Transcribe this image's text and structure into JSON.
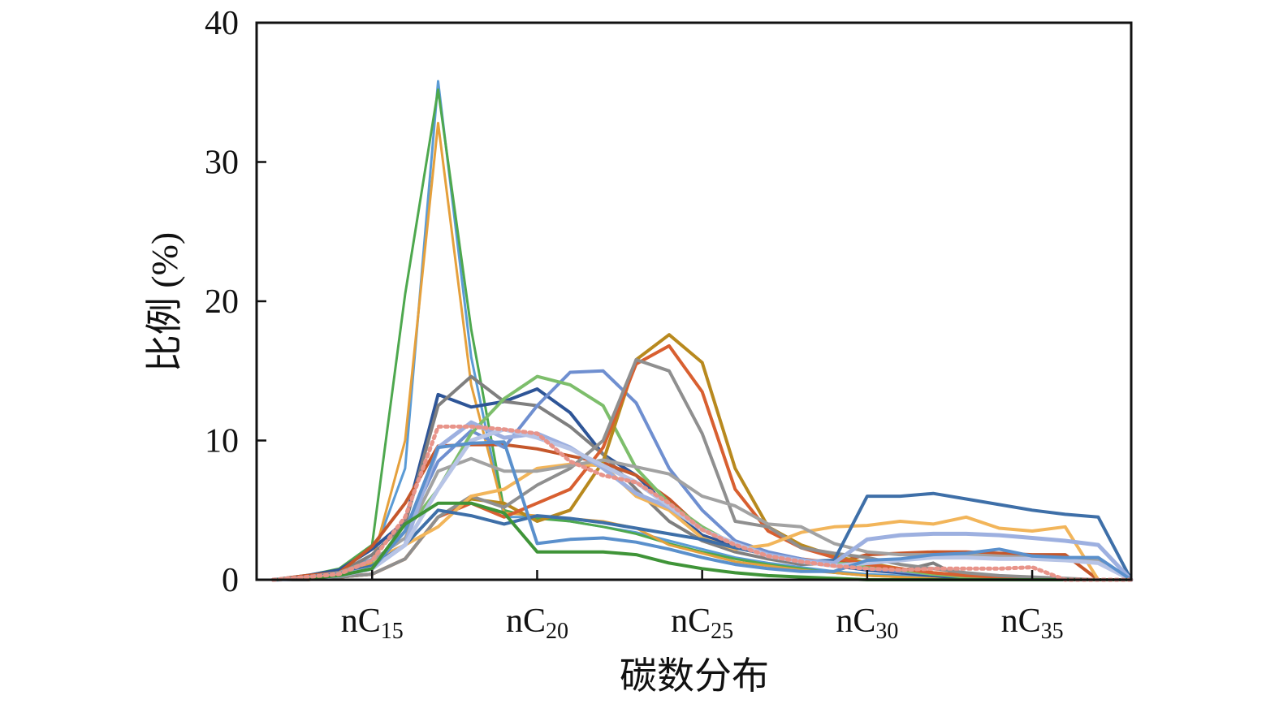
{
  "chart_data": {
    "type": "line",
    "title": "",
    "xlabel": "碳数分布",
    "ylabel": "比例 (%)",
    "xlim": [
      11.5,
      38
    ],
    "ylim": [
      0,
      40
    ],
    "yticks": [
      0,
      10,
      20,
      30,
      40
    ],
    "xticks": [
      {
        "value": 15,
        "prefix": "nC",
        "sub": "15"
      },
      {
        "value": 20,
        "prefix": "nC",
        "sub": "20"
      },
      {
        "value": 25,
        "prefix": "nC",
        "sub": "25"
      },
      {
        "value": 30,
        "prefix": "nC",
        "sub": "30"
      },
      {
        "value": 35,
        "prefix": "nC",
        "sub": "35"
      }
    ],
    "grid": false,
    "legend": "none",
    "x": [
      12,
      13,
      14,
      15,
      16,
      17,
      18,
      19,
      20,
      21,
      22,
      23,
      24,
      25,
      26,
      27,
      28,
      29,
      30,
      31,
      32,
      33,
      34,
      35,
      36,
      37,
      38
    ],
    "series": [
      {
        "color": "#5B9BD5",
        "width": 3,
        "values": [
          0,
          0.3,
          0.6,
          1.5,
          8,
          35.8,
          16,
          4.5,
          4.5,
          4.2,
          3.8,
          3.4,
          2.8,
          2.2,
          1.6,
          1.2,
          0.9,
          0.6,
          0.4,
          0.3,
          0.2,
          0.1,
          0,
          0,
          0,
          0,
          0
        ]
      },
      {
        "color": "#4EA84E",
        "width": 3,
        "values": [
          0,
          0.3,
          0.8,
          2.5,
          20.5,
          35.2,
          18,
          5,
          4.4,
          4.2,
          3.8,
          3.3,
          2.6,
          2,
          1.5,
          1.1,
          0.8,
          0.5,
          0.3,
          0.2,
          0.1,
          0,
          0,
          0,
          0,
          0,
          0
        ]
      },
      {
        "color": "#E5A03C",
        "width": 3,
        "values": [
          0,
          0.2,
          0.5,
          1.2,
          10,
          32.8,
          14,
          4.8,
          4.6,
          4.4,
          4.2,
          3.7,
          2.5,
          1.9,
          1.3,
          1,
          0.7,
          0.5,
          0.3,
          0.2,
          0.1,
          0,
          0,
          0,
          0,
          0,
          0
        ]
      },
      {
        "color": "#2E5597",
        "width": 4,
        "values": [
          0,
          0.3,
          0.7,
          2.2,
          4.2,
          13.3,
          12.4,
          12.8,
          13.7,
          12,
          9,
          7.5,
          5.2,
          3.2,
          2.4,
          1.8,
          1.3,
          1,
          0.7,
          0.5,
          0.3,
          0.1,
          0,
          0,
          0,
          0,
          0
        ]
      },
      {
        "color": "#7F7F7F",
        "width": 4,
        "values": [
          0,
          0.2,
          0.5,
          1.8,
          4,
          12.5,
          14.6,
          12.8,
          12.5,
          11,
          9,
          6.5,
          4.2,
          2.8,
          2,
          1.5,
          1.1,
          1.2,
          1.2,
          0.6,
          1.2,
          0,
          0,
          0,
          0,
          0,
          0
        ]
      },
      {
        "color": "#C5572B",
        "width": 4,
        "values": [
          0,
          0.3,
          0.5,
          2.4,
          5.5,
          9.6,
          9.7,
          9.7,
          9.4,
          8.9,
          8.4,
          7.5,
          5.8,
          3.6,
          2.5,
          1.9,
          1.5,
          1.2,
          1.8,
          1.9,
          2,
          2,
          1.9,
          1.8,
          1.8,
          0,
          0
        ]
      },
      {
        "color": "#6F8FD0",
        "width": 4,
        "values": [
          0,
          0.1,
          0.3,
          0.8,
          3.5,
          8.5,
          10.7,
          9.5,
          12.5,
          14.9,
          15,
          12.7,
          8,
          5,
          2.8,
          2,
          1.5,
          1,
          0.8,
          0.6,
          0.4,
          0.3,
          0.2,
          0.1,
          0,
          0,
          0
        ]
      },
      {
        "color": "#7DBE6B",
        "width": 4,
        "values": [
          0,
          0.1,
          0.3,
          1,
          3.5,
          6.5,
          10.5,
          13,
          14.6,
          14,
          12.5,
          8,
          5.5,
          3.8,
          2.5,
          1.8,
          1.4,
          1.2,
          1,
          0.7,
          0.4,
          0.2,
          0.1,
          0,
          0,
          0,
          0
        ]
      },
      {
        "color": "#B8891E",
        "width": 4,
        "values": [
          0,
          0,
          0.2,
          0.4,
          1.5,
          4.5,
          5.8,
          5.5,
          4.2,
          5,
          8.5,
          15.8,
          17.6,
          15.6,
          8,
          3.8,
          2.5,
          1.7,
          1.2,
          0.8,
          0.5,
          0.3,
          0.2,
          0.1,
          0,
          0,
          0
        ]
      },
      {
        "color": "#D85F30",
        "width": 4,
        "values": [
          0,
          0,
          0.2,
          0.4,
          1.5,
          4.5,
          5.5,
          4.5,
          5.5,
          6.5,
          9.5,
          15.5,
          16.8,
          13.5,
          6.5,
          3.5,
          2.3,
          1.6,
          1.1,
          0.8,
          0.5,
          0.3,
          0.2,
          0.1,
          0,
          0,
          0
        ]
      },
      {
        "color": "#8F8F8F",
        "width": 4,
        "values": [
          0,
          0,
          0.2,
          0.4,
          1.5,
          4.5,
          6,
          5.2,
          6.8,
          8,
          10,
          15.8,
          15,
          10.5,
          4.2,
          3.8,
          2.3,
          1.9,
          1.6,
          1.1,
          0.8,
          0.5,
          0.3,
          0.2,
          0.1,
          0,
          0
        ]
      },
      {
        "color": "#F2B55A",
        "width": 4,
        "values": [
          0,
          0.2,
          0.5,
          1.4,
          2.5,
          3.8,
          6,
          6.5,
          8,
          8.3,
          8.2,
          6,
          5,
          3,
          2.2,
          2.5,
          3.4,
          3.8,
          3.9,
          4.2,
          4,
          4.5,
          3.7,
          3.5,
          3.8,
          0,
          0
        ]
      },
      {
        "color": "#A2A2A2",
        "width": 4,
        "values": [
          0,
          0.2,
          0.5,
          1.4,
          3,
          7.8,
          8.7,
          7.8,
          7.8,
          8.2,
          8.6,
          8.1,
          7.6,
          6,
          5.3,
          4,
          3.8,
          2.6,
          2,
          1.8,
          1.8,
          1.8,
          1.7,
          1.6,
          1.6,
          1.4,
          0
        ]
      },
      {
        "color": "#3E6FA8",
        "width": 4,
        "values": [
          0,
          0.2,
          0.4,
          1,
          2.5,
          5,
          4.6,
          4,
          4.6,
          4.4,
          4.1,
          3.7,
          3.3,
          2.9,
          2.3,
          1.8,
          1.3,
          1.4,
          6,
          6,
          6.2,
          5.8,
          5.4,
          5,
          4.7,
          4.5,
          0
        ]
      },
      {
        "color": "#9DB0E0",
        "width": 5,
        "values": [
          0,
          0.1,
          0.3,
          0.8,
          2.5,
          9.5,
          11.3,
          10.2,
          10.5,
          9.5,
          8,
          6.2,
          5.2,
          3.6,
          2.6,
          1.8,
          1.4,
          1.2,
          2.9,
          3.2,
          3.3,
          3.3,
          3.2,
          3,
          2.8,
          2.5,
          0
        ]
      },
      {
        "color": "#B7C4E6",
        "width": 5,
        "values": [
          0,
          0.1,
          0.3,
          0.8,
          2.5,
          6.5,
          10,
          10.8,
          10.2,
          9.4,
          8.2,
          7,
          5.3,
          3.6,
          2.6,
          1.7,
          1.3,
          1,
          1.2,
          1.4,
          1.6,
          1.6,
          1.5,
          1.5,
          1.4,
          1.2,
          0
        ]
      },
      {
        "color": "#5A90CC",
        "width": 4,
        "values": [
          0,
          0.1,
          0.3,
          0.8,
          3.5,
          9.5,
          9.8,
          9.9,
          2.6,
          2.9,
          3,
          2.7,
          2.2,
          1.6,
          1.1,
          0.8,
          0.6,
          0.6,
          1.4,
          1.5,
          1.8,
          1.9,
          2.2,
          1.7,
          1.6,
          1.6,
          0
        ]
      },
      {
        "color": "#3F9438",
        "width": 4,
        "values": [
          0,
          0.1,
          0.3,
          0.8,
          4,
          5.5,
          5.5,
          4.8,
          2,
          2,
          2,
          1.8,
          1.2,
          0.8,
          0.5,
          0.3,
          0.2,
          0.1,
          0,
          0,
          0,
          0,
          0,
          0,
          0,
          0,
          0
        ]
      },
      {
        "color": "#E8948A",
        "width": 5,
        "dash": "3 5",
        "values": [
          0,
          0.2,
          0.4,
          1.4,
          4.5,
          11,
          11,
          10.8,
          10.5,
          8.5,
          7.5,
          7,
          5.5,
          3.6,
          2.5,
          1.7,
          1.3,
          1,
          0.8,
          0.7,
          0.8,
          0.8,
          0.8,
          0.9,
          0,
          0,
          0
        ]
      }
    ]
  }
}
